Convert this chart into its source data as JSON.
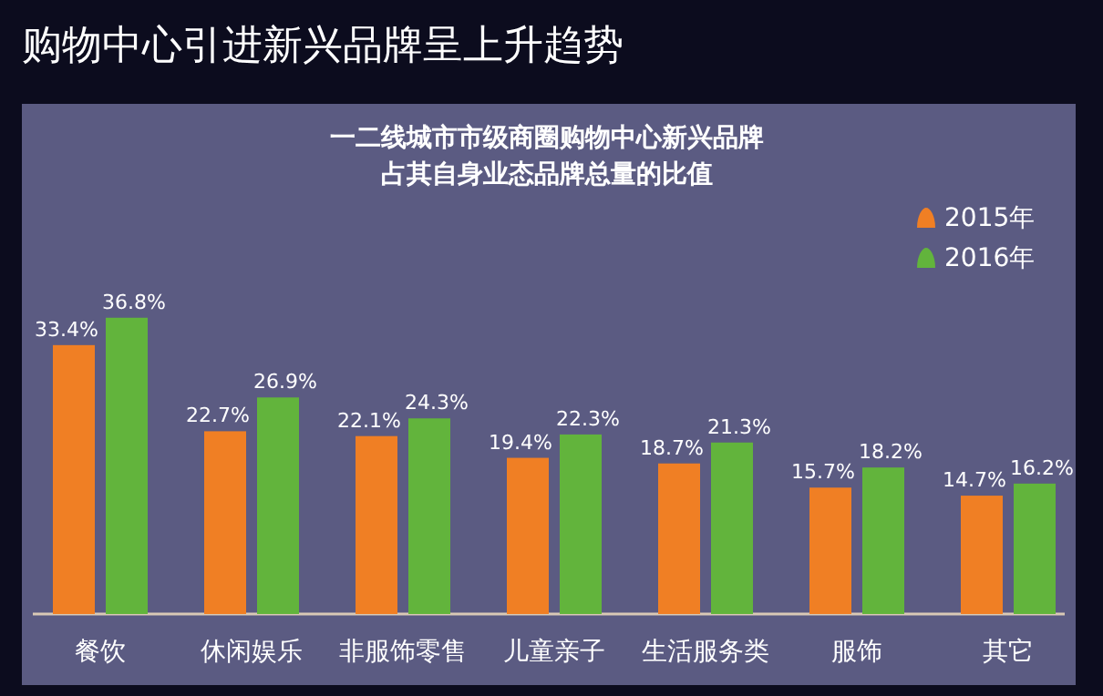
{
  "chart_data": {
    "type": "bar",
    "title": "购物中心引进新兴品牌呈上升趋势",
    "subtitle": "一二线城市市级商圈购物中心新兴品牌占其自身业态品牌总量的比值",
    "categories": [
      "餐饮",
      "休闲娱乐",
      "非服饰零售",
      "儿童亲子",
      "生活服务类",
      "服饰",
      "其它"
    ],
    "series": [
      {
        "name": "2015年",
        "color": "#f07f24",
        "values": [
          33.4,
          22.7,
          22.1,
          19.4,
          18.7,
          15.7,
          14.7
        ],
        "value_labels": [
          "33.4%",
          "22.7%",
          "22.1%",
          "19.4%",
          "18.7%",
          "15.7%",
          "14.7%"
        ]
      },
      {
        "name": "2016年",
        "color": "#62b43c",
        "values": [
          36.8,
          26.9,
          24.3,
          22.3,
          21.3,
          18.2,
          16.2
        ],
        "value_labels": [
          "36.8%",
          "26.9%",
          "24.3%",
          "22.3%",
          "21.3%",
          "18.2%",
          "16.2%"
        ]
      }
    ],
    "legend": "top right"
  }
}
